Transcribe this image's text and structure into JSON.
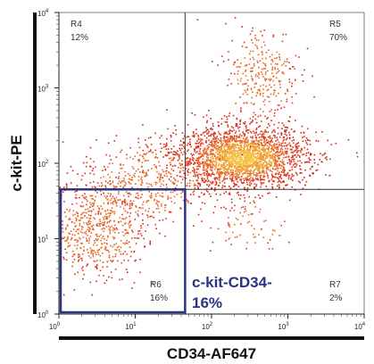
{
  "chart_data": {
    "type": "scatter",
    "xlabel": "CD34-AF647",
    "ylabel": "c-kit-PE",
    "x_scale": "log",
    "y_scale": "log",
    "xlim": [
      1,
      10000
    ],
    "ylim": [
      1,
      10000
    ],
    "x_ticks": [
      {
        "base": "10",
        "exp": "0"
      },
      {
        "base": "10",
        "exp": "1"
      },
      {
        "base": "10",
        "exp": "2"
      },
      {
        "base": "10",
        "exp": "3"
      },
      {
        "base": "10",
        "exp": "4"
      }
    ],
    "y_ticks": [
      {
        "base": "10",
        "exp": "0"
      },
      {
        "base": "10",
        "exp": "1"
      },
      {
        "base": "10",
        "exp": "2"
      },
      {
        "base": "10",
        "exp": "3"
      },
      {
        "base": "10",
        "exp": "4"
      }
    ],
    "quadrant_thresholds": {
      "x": 45,
      "y": 45
    },
    "quadrants": [
      {
        "name": "R4",
        "percent": "12%"
      },
      {
        "name": "R5",
        "percent": "70%"
      },
      {
        "name": "R6",
        "percent": "16%"
      },
      {
        "name": "R7",
        "percent": "2%"
      }
    ],
    "gate": {
      "label_line1": "c-kit-CD34-",
      "label_line2": "16%",
      "x_range": [
        1,
        45
      ],
      "y_range": [
        1,
        45
      ],
      "color": "#2a3580"
    },
    "populations": [
      {
        "cx": 250,
        "cy": 120,
        "sx": 0.42,
        "sy": 0.2,
        "fraction": 0.62
      },
      {
        "cx": 3,
        "cy": 14,
        "sx": 0.32,
        "sy": 0.32,
        "fraction": 0.16
      },
      {
        "cx": 14,
        "cy": 55,
        "sx": 0.45,
        "sy": 0.3,
        "fraction": 0.12
      },
      {
        "cx": 450,
        "cy": 1500,
        "sx": 0.25,
        "sy": 0.35,
        "fraction": 0.08
      },
      {
        "cx": 300,
        "cy": 15,
        "sx": 0.25,
        "sy": 0.2,
        "fraction": 0.02
      }
    ],
    "point_colors": [
      "#f0a030",
      "#e86a2a",
      "#e03a1e",
      "#d02818",
      "#f4c040"
    ],
    "grid": false
  }
}
